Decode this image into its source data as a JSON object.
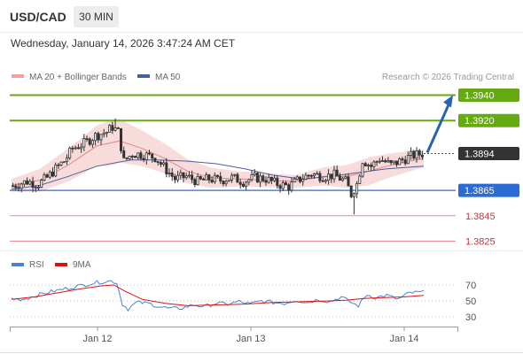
{
  "header": {
    "symbol": "USD/CAD",
    "timeframe": "30 MIN",
    "datetime": "Wednesday, January 14, 2026 3:47:24 AM CET"
  },
  "legend": {
    "ma20": "MA 20 + Bollinger Bands",
    "ma50": "MA 50",
    "credit": "Research © 2026 Trading Central"
  },
  "rsi_legend": {
    "rsi": "RSI",
    "ma9": "9MA"
  },
  "colors": {
    "resistance": "#66aa11",
    "support": "#e05555",
    "pivot": "#2b6cd4",
    "current_price": "#333333",
    "ma20_band": "#f7d6d6",
    "ma20": "#e08888",
    "ma50": "#4a5fa0",
    "candle": "#333333",
    "arrow": "#2b62b0",
    "rsi": "#4a7fd4",
    "rsi_ma": "#dd1111"
  },
  "chart_data": [
    {
      "type": "candlestick",
      "title": "USD/CAD 30 MIN",
      "x_ticks": [
        "Jan 12",
        "Jan 13",
        "Jan 14"
      ],
      "ylim": [
        1.3815,
        1.3955
      ],
      "levels": [
        {
          "label": "1.3940",
          "value": 1.394,
          "kind": "resistance"
        },
        {
          "label": "1.3920",
          "value": 1.392,
          "kind": "resistance"
        },
        {
          "label": "1.3894",
          "value": 1.3894,
          "kind": "current"
        },
        {
          "label": "1.3865",
          "value": 1.3865,
          "kind": "pivot"
        },
        {
          "label": "1.3845",
          "value": 1.3845,
          "kind": "support"
        },
        {
          "label": "1.3825",
          "value": 1.3825,
          "kind": "support"
        }
      ],
      "price_path": [
        [
          0,
          1.3868
        ],
        [
          6,
          1.3872
        ],
        [
          10,
          1.387
        ],
        [
          13,
          1.3875
        ],
        [
          16,
          1.3882
        ],
        [
          19,
          1.3888
        ],
        [
          22,
          1.3898
        ],
        [
          26,
          1.3902
        ],
        [
          30,
          1.3908
        ],
        [
          34,
          1.3911
        ],
        [
          36,
          1.3915
        ],
        [
          38,
          1.3911
        ],
        [
          40,
          1.3888
        ],
        [
          43,
          1.3894
        ],
        [
          47,
          1.3893
        ],
        [
          51,
          1.3891
        ],
        [
          55,
          1.3881
        ],
        [
          58,
          1.3874
        ],
        [
          62,
          1.3876
        ],
        [
          66,
          1.3872
        ],
        [
          70,
          1.3874
        ],
        [
          74,
          1.3873
        ],
        [
          78,
          1.3875
        ],
        [
          82,
          1.3872
        ],
        [
          86,
          1.3875
        ],
        [
          90,
          1.3874
        ],
        [
          94,
          1.387
        ],
        [
          98,
          1.3868
        ],
        [
          102,
          1.3874
        ],
        [
          106,
          1.3878
        ],
        [
          110,
          1.3876
        ],
        [
          114,
          1.3877
        ],
        [
          118,
          1.3872
        ],
        [
          120,
          1.3862
        ],
        [
          122,
          1.387
        ],
        [
          124,
          1.3889
        ],
        [
          127,
          1.3884
        ],
        [
          130,
          1.389
        ],
        [
          134,
          1.3885
        ],
        [
          137,
          1.3888
        ],
        [
          141,
          1.3892
        ],
        [
          145,
          1.3894
        ]
      ],
      "ma20_path": [
        [
          0,
          1.3869
        ],
        [
          10,
          1.3873
        ],
        [
          20,
          1.3885
        ],
        [
          30,
          1.39
        ],
        [
          38,
          1.3904
        ],
        [
          46,
          1.3898
        ],
        [
          54,
          1.389
        ],
        [
          62,
          1.388
        ],
        [
          70,
          1.3875
        ],
        [
          80,
          1.3874
        ],
        [
          90,
          1.3873
        ],
        [
          100,
          1.3872
        ],
        [
          110,
          1.3876
        ],
        [
          118,
          1.3876
        ],
        [
          124,
          1.3879
        ],
        [
          132,
          1.3884
        ],
        [
          140,
          1.3888
        ],
        [
          145,
          1.389
        ]
      ],
      "ma20_band_halfwidth": [
        [
          0,
          0.0005
        ],
        [
          20,
          0.0013
        ],
        [
          36,
          0.0018
        ],
        [
          46,
          0.0014
        ],
        [
          60,
          0.001
        ],
        [
          80,
          0.0006
        ],
        [
          100,
          0.0005
        ],
        [
          118,
          0.0009
        ],
        [
          126,
          0.0011
        ],
        [
          145,
          0.0007
        ]
      ],
      "ma50_path": [
        [
          0,
          1.3866
        ],
        [
          10,
          1.3869
        ],
        [
          20,
          1.3876
        ],
        [
          30,
          1.3884
        ],
        [
          42,
          1.3889
        ],
        [
          52,
          1.3889
        ],
        [
          62,
          1.3888
        ],
        [
          72,
          1.3886
        ],
        [
          82,
          1.3882
        ],
        [
          92,
          1.3877
        ],
        [
          102,
          1.3874
        ],
        [
          112,
          1.3876
        ],
        [
          122,
          1.3879
        ],
        [
          132,
          1.3882
        ],
        [
          145,
          1.3884
        ]
      ],
      "projection": {
        "from": 1.3894,
        "to": 1.394
      }
    },
    {
      "type": "line",
      "title": "RSI",
      "y_ticks": [
        70,
        50,
        30
      ],
      "ylim": [
        20,
        80
      ],
      "series": [
        {
          "name": "RSI",
          "values": [
            [
              0,
              53
            ],
            [
              4,
              52
            ],
            [
              8,
              56
            ],
            [
              12,
              60
            ],
            [
              16,
              63
            ],
            [
              20,
              66
            ],
            [
              24,
              69
            ],
            [
              28,
              72
            ],
            [
              32,
              74
            ],
            [
              35,
              75
            ],
            [
              37,
              73
            ],
            [
              39,
              46
            ],
            [
              41,
              40
            ],
            [
              44,
              48
            ],
            [
              48,
              47
            ],
            [
              52,
              43
            ],
            [
              56,
              40
            ],
            [
              60,
              41
            ],
            [
              64,
              45
            ],
            [
              68,
              43
            ],
            [
              72,
              47
            ],
            [
              76,
              46
            ],
            [
              80,
              49
            ],
            [
              84,
              46
            ],
            [
              88,
              50
            ],
            [
              92,
              48
            ],
            [
              96,
              47
            ],
            [
              100,
              51
            ],
            [
              104,
              48
            ],
            [
              108,
              52
            ],
            [
              112,
              49
            ],
            [
              116,
              55
            ],
            [
              120,
              47
            ],
            [
              122,
              44
            ],
            [
              125,
              58
            ],
            [
              128,
              54
            ],
            [
              132,
              57
            ],
            [
              136,
              52
            ],
            [
              140,
              60
            ],
            [
              145,
              61
            ]
          ]
        },
        {
          "name": "9MA",
          "values": [
            [
              0,
              52
            ],
            [
              8,
              55
            ],
            [
              16,
              60
            ],
            [
              24,
              65
            ],
            [
              32,
              69
            ],
            [
              36,
              70
            ],
            [
              40,
              62
            ],
            [
              46,
              52
            ],
            [
              54,
              47
            ],
            [
              62,
              44
            ],
            [
              72,
              45
            ],
            [
              82,
              46
            ],
            [
              92,
              48
            ],
            [
              102,
              49
            ],
            [
              112,
              50
            ],
            [
              118,
              51
            ],
            [
              124,
              53
            ],
            [
              130,
              54
            ],
            [
              138,
              55
            ],
            [
              145,
              57
            ]
          ]
        }
      ]
    }
  ]
}
